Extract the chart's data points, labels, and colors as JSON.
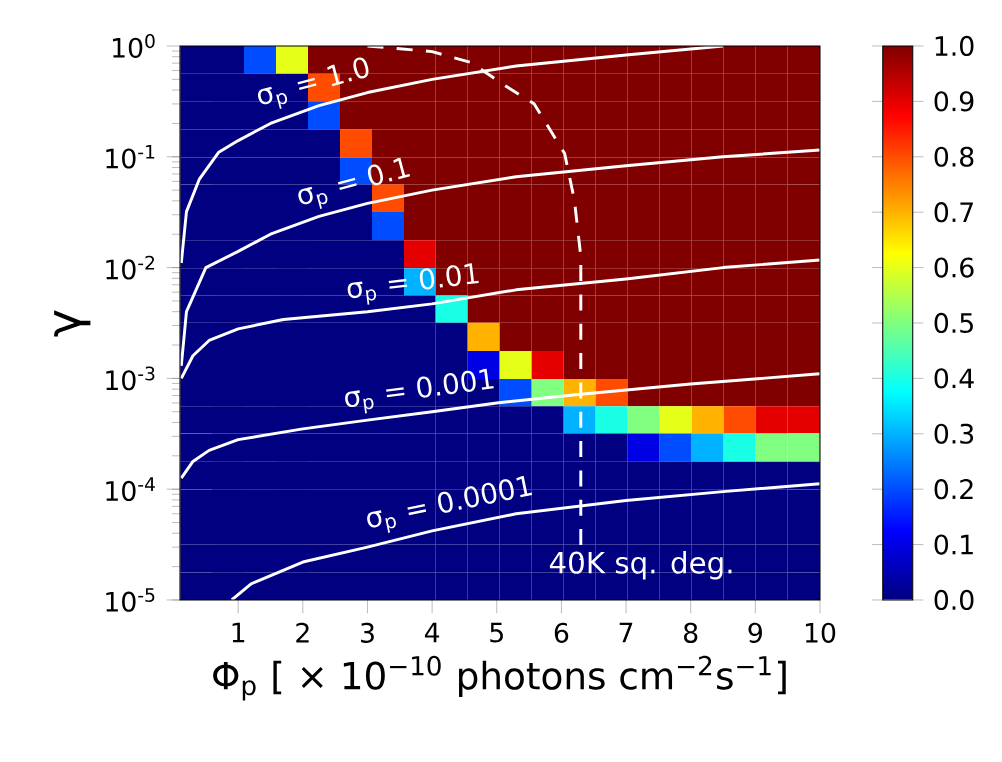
{
  "chart_data": {
    "type": "heatmap",
    "xlabel": "Φ$_{p}$ [ × 10$^{−10}$  photons cm$^{−2}$s$^{−1}$]",
    "ylabel": "γ",
    "log": "y",
    "xlim": [
      0.1,
      10
    ],
    "xticks": [
      1,
      2,
      3,
      4,
      5,
      6,
      7,
      8,
      9,
      10
    ],
    "ylim": [
      1e-05,
      1
    ],
    "yticks": [
      {
        "value": 1e-05,
        "label": "10$^{-5}$"
      },
      {
        "value": 0.0001,
        "label": "10$^{-4}$"
      },
      {
        "value": 0.001,
        "label": "10$^{-3}$"
      },
      {
        "value": 0.01,
        "label": "10$^{-2}$"
      },
      {
        "value": 0.1,
        "label": "10$^{-1}$"
      },
      {
        "value": 1,
        "label": "10$^{0}$"
      }
    ],
    "clim": [
      0,
      1
    ],
    "cticks": [
      {
        "value": 0,
        "label": "0.0"
      },
      {
        "value": 0.1,
        "label": "0.1"
      },
      {
        "value": 0.2,
        "label": "0.2"
      },
      {
        "value": 0.3,
        "label": "0.3"
      },
      {
        "value": 0.4,
        "label": "0.4"
      },
      {
        "value": 0.5,
        "label": "0.5"
      },
      {
        "value": 0.6,
        "label": "0.6"
      },
      {
        "value": 0.7,
        "label": "0.7"
      },
      {
        "value": 0.8,
        "label": "0.8"
      },
      {
        "value": 0.9,
        "label": "0.9"
      },
      {
        "value": 1,
        "label": "1.0"
      }
    ],
    "x": [
      0.35,
      0.84,
      1.34,
      1.83,
      2.33,
      2.82,
      3.32,
      3.81,
      4.3,
      4.8,
      5.29,
      5.79,
      6.28,
      6.78,
      7.27,
      7.77,
      8.26,
      8.76,
      9.25,
      9.75
    ],
    "y": [
      0.75,
      0.42,
      0.24,
      0.13,
      0.075,
      0.042,
      0.024,
      0.013,
      0.0075,
      0.0042,
      0.0024,
      0.0013,
      0.00075,
      0.00042,
      0.00024,
      0.00013,
      7.5e-05,
      4.2e-05,
      2.4e-05,
      1.3e-05
    ],
    "cells": [
      [
        0,
        0,
        0.2,
        0.6,
        1,
        1,
        1,
        1,
        1,
        1,
        1,
        1,
        1,
        1,
        1,
        1,
        1,
        1,
        1,
        1
      ],
      [
        0,
        0,
        0,
        0,
        0.8,
        1,
        1,
        1,
        1,
        1,
        1,
        1,
        1,
        1,
        1,
        1,
        1,
        1,
        1,
        1
      ],
      [
        0,
        0,
        0,
        0,
        0.2,
        1,
        1,
        1,
        1,
        1,
        1,
        1,
        1,
        1,
        1,
        1,
        1,
        1,
        1,
        1
      ],
      [
        0,
        0,
        0,
        0,
        0,
        0.8,
        1,
        1,
        1,
        1,
        1,
        1,
        1,
        1,
        1,
        1,
        1,
        1,
        1,
        1
      ],
      [
        0,
        0,
        0,
        0,
        0,
        0.2,
        1,
        1,
        1,
        1,
        1,
        1,
        1,
        1,
        1,
        1,
        1,
        1,
        1,
        1
      ],
      [
        0,
        0,
        0,
        0,
        0,
        0,
        0.8,
        1,
        1,
        1,
        1,
        1,
        1,
        1,
        1,
        1,
        1,
        1,
        1,
        1
      ],
      [
        0,
        0,
        0,
        0,
        0,
        0,
        0.2,
        1,
        1,
        1,
        1,
        1,
        1,
        1,
        1,
        1,
        1,
        1,
        1,
        1
      ],
      [
        0,
        0,
        0,
        0,
        0,
        0,
        0,
        0.9,
        1,
        1,
        1,
        1,
        1,
        1,
        1,
        1,
        1,
        1,
        1,
        1
      ],
      [
        0,
        0,
        0,
        0,
        0,
        0,
        0,
        0.3,
        1,
        1,
        1,
        1,
        1,
        1,
        1,
        1,
        1,
        1,
        1,
        1
      ],
      [
        0,
        0,
        0,
        0,
        0,
        0,
        0,
        0,
        0.4,
        1,
        1,
        1,
        1,
        1,
        1,
        1,
        1,
        1,
        1,
        1
      ],
      [
        0,
        0,
        0,
        0,
        0,
        0,
        0,
        0,
        0,
        0.7,
        1,
        1,
        1,
        1,
        1,
        1,
        1,
        1,
        1,
        1
      ],
      [
        0,
        0,
        0,
        0,
        0,
        0,
        0,
        0,
        0,
        0.1,
        0.6,
        0.9,
        1,
        1,
        1,
        1,
        1,
        1,
        1,
        1
      ],
      [
        0,
        0,
        0,
        0,
        0,
        0,
        0,
        0,
        0,
        0,
        0.2,
        0.5,
        0.7,
        0.8,
        1,
        1,
        1,
        1,
        1,
        1
      ],
      [
        0,
        0,
        0,
        0,
        0,
        0,
        0,
        0,
        0,
        0,
        0,
        0,
        0.3,
        0.4,
        0.5,
        0.6,
        0.7,
        0.8,
        0.9,
        0.9
      ],
      [
        0,
        0,
        0,
        0,
        0,
        0,
        0,
        0,
        0,
        0,
        0,
        0,
        0,
        0,
        0.1,
        0.2,
        0.3,
        0.4,
        0.5,
        0.5
      ],
      [
        0,
        0,
        0,
        0,
        0,
        0,
        0,
        0,
        0,
        0,
        0,
        0,
        0,
        0,
        0,
        0,
        0,
        0,
        0,
        0
      ],
      [
        0,
        0,
        0,
        0,
        0,
        0,
        0,
        0,
        0,
        0,
        0,
        0,
        0,
        0,
        0,
        0,
        0,
        0,
        0,
        0
      ],
      [
        0,
        0,
        0,
        0,
        0,
        0,
        0,
        0,
        0,
        0,
        0,
        0,
        0,
        0,
        0,
        0,
        0,
        0,
        0,
        0
      ],
      [
        0,
        0,
        0,
        0,
        0,
        0,
        0,
        0,
        0,
        0,
        0,
        0,
        0,
        0,
        0,
        0,
        0,
        0,
        0,
        0
      ],
      [
        0,
        0,
        0,
        0,
        0,
        0,
        0,
        0,
        0,
        0,
        0,
        0,
        0,
        0,
        0,
        0,
        0,
        0,
        0,
        0
      ]
    ],
    "series": [
      {
        "type": "line",
        "name": "σ$_{p}$ = 1.0",
        "color": "#ffffff",
        "x": [
          0.12,
          0.2,
          0.4,
          0.7,
          1,
          1.5,
          2.25,
          3,
          4,
          5.3,
          7,
          8.5
        ],
        "values": [
          0.011,
          0.032,
          0.063,
          0.11,
          0.14,
          0.2,
          0.29,
          0.38,
          0.5,
          0.66,
          0.83,
          1.0
        ]
      },
      {
        "type": "line",
        "name": "σ$_{p}$ = 0.1",
        "color": "#ffffff",
        "x": [
          0.12,
          0.2,
          0.5,
          1,
          1.5,
          2.25,
          3,
          4,
          5.3,
          7,
          8.5,
          10
        ],
        "values": [
          0.0013,
          0.004,
          0.01,
          0.014,
          0.02,
          0.029,
          0.038,
          0.05,
          0.066,
          0.083,
          0.1,
          0.115
        ]
      },
      {
        "type": "line",
        "name": "σ$_{p}$ = 0.01",
        "color": "#ffffff",
        "x": [
          0.12,
          0.3,
          0.55,
          1,
          1.7,
          3,
          4,
          5.3,
          7,
          8.5,
          10
        ],
        "values": [
          0.001,
          0.0016,
          0.0022,
          0.0028,
          0.0034,
          0.004,
          0.0047,
          0.0063,
          0.0079,
          0.01,
          0.0117
        ]
      },
      {
        "type": "line",
        "name": "σ$_{p}$ = 0.001",
        "color": "#ffffff",
        "x": [
          0.12,
          0.3,
          0.55,
          1,
          2,
          3,
          4,
          5,
          6.3,
          8,
          10
        ],
        "values": [
          0.000126,
          0.000178,
          0.000224,
          0.00028,
          0.00035,
          0.00042,
          0.0005,
          0.0006,
          0.00072,
          0.00089,
          0.0011
        ]
      },
      {
        "type": "line",
        "name": "σ$_{p}$ = 0.0001",
        "color": "#ffffff",
        "x": [
          0.9,
          1.2,
          2,
          3,
          4,
          5.3,
          7,
          8.5,
          10
        ],
        "values": [
          1e-05,
          1.4e-05,
          2.2e-05,
          3e-05,
          4.2e-05,
          6e-05,
          7.9e-05,
          9.5e-05,
          0.000112
        ]
      },
      {
        "type": "line",
        "name": "40K sq. deg.",
        "color": "#ffffff",
        "line_style": "dashed",
        "x": [
          3.0,
          4.0,
          4.6,
          5.15,
          5.58,
          6.05,
          6.2,
          6.3,
          6.3
        ],
        "values": [
          1.0,
          0.89,
          0.71,
          0.43,
          0.3,
          0.107,
          0.041,
          0.0126,
          2.3e-05
        ]
      }
    ]
  }
}
